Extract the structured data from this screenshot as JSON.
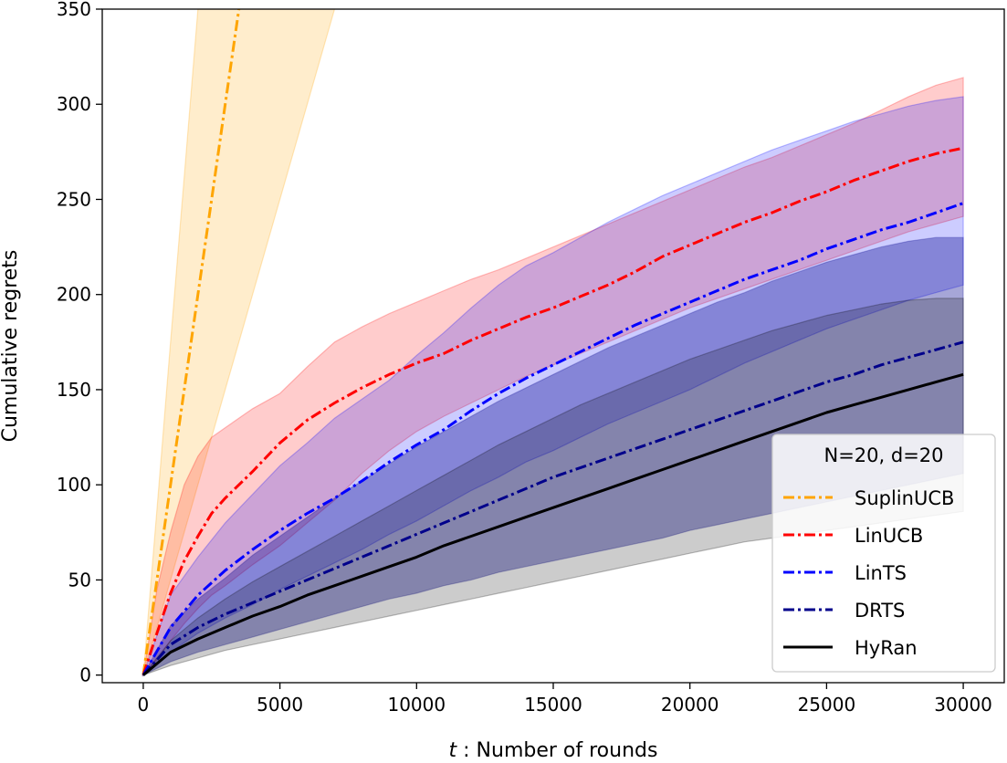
{
  "chart_data": {
    "type": "line",
    "xlabel_italic": "t",
    "xlabel_rest": " : Number of rounds",
    "ylabel": "Cumulative regrets",
    "xlim": [
      -1500,
      31500
    ],
    "ylim": [
      -4,
      350
    ],
    "xticks": [
      0,
      5000,
      10000,
      15000,
      20000,
      25000,
      30000
    ],
    "yticks": [
      0,
      50,
      100,
      150,
      200,
      250,
      300,
      350
    ],
    "legend_title": "N=20, d=20",
    "legend_position": "lower-right",
    "grid": false,
    "series": [
      {
        "name": "SuplinUCB",
        "color": "#ffa500",
        "dash": "dashdot",
        "fill_opacity": 0.2,
        "x": [
          0,
          500,
          1000,
          1500,
          2000,
          2500,
          3000,
          3500
        ],
        "y": [
          0,
          50,
          100,
          150,
          200,
          250,
          300,
          350
        ],
        "lower": [
          0,
          30,
          60,
          90,
          120,
          145,
          175,
          205
        ],
        "upper": [
          0,
          90,
          180,
          270,
          350,
          430,
          520,
          600
        ],
        "band_x": [
          0,
          500,
          1000,
          1500,
          2000,
          2500,
          3000,
          3500,
          10200
        ],
        "band_lower": [
          0,
          25,
          50,
          75,
          100,
          125,
          150,
          175,
          510
        ],
        "band_upper": [
          0,
          87,
          175,
          262,
          350,
          440,
          525,
          615,
          1790
        ]
      },
      {
        "name": "LinUCB",
        "color": "#ff0000",
        "dash": "dashdot",
        "fill_opacity": 0.2,
        "x": [
          0,
          500,
          1000,
          1500,
          2000,
          2500,
          3000,
          4000,
          5000,
          6000,
          7000,
          8000,
          9000,
          10000,
          11000,
          12000,
          13000,
          14000,
          15000,
          16000,
          17000,
          18000,
          19000,
          20000,
          21000,
          22000,
          23000,
          24000,
          25000,
          26000,
          27000,
          28000,
          29000,
          30000
        ],
        "y": [
          0,
          22,
          43,
          60,
          73,
          85,
          93,
          107,
          122,
          134,
          143,
          151,
          158,
          164,
          169,
          176,
          182,
          188,
          193,
          199,
          205,
          212,
          220,
          226,
          232,
          238,
          243,
          249,
          254,
          260,
          265,
          270,
          274,
          277
        ],
        "lower": [
          0,
          8,
          18,
          27,
          35,
          42,
          47,
          58,
          68,
          80,
          92,
          106,
          118,
          128,
          136,
          143,
          150,
          157,
          163,
          169,
          175,
          181,
          187,
          193,
          198,
          203,
          208,
          213,
          218,
          223,
          228,
          233,
          237,
          241
        ],
        "upper": [
          0,
          45,
          75,
          100,
          115,
          125,
          130,
          140,
          148,
          162,
          175,
          183,
          190,
          196,
          202,
          208,
          213,
          219,
          225,
          231,
          237,
          243,
          249,
          255,
          261,
          267,
          272,
          278,
          284,
          290,
          297,
          304,
          310,
          314
        ]
      },
      {
        "name": "LinTS",
        "color": "#0000ff",
        "dash": "dashdot",
        "fill_opacity": 0.2,
        "x": [
          0,
          1000,
          2000,
          3000,
          4000,
          5000,
          6000,
          7000,
          8000,
          9000,
          10000,
          11000,
          12000,
          13000,
          14000,
          15000,
          16000,
          17000,
          18000,
          19000,
          20000,
          21000,
          22000,
          23000,
          24000,
          25000,
          26000,
          27000,
          28000,
          29000,
          30000
        ],
        "y": [
          0,
          25,
          42,
          55,
          66,
          76,
          85,
          93,
          102,
          112,
          121,
          129,
          139,
          148,
          156,
          163,
          170,
          177,
          184,
          190,
          196,
          202,
          208,
          213,
          218,
          224,
          229,
          234,
          238,
          243,
          248
        ],
        "lower": [
          0,
          12,
          22,
          30,
          37,
          45,
          52,
          59,
          66,
          74,
          81,
          89,
          97,
          104,
          112,
          118,
          125,
          132,
          138,
          144,
          150,
          157,
          164,
          170,
          176,
          182,
          187,
          192,
          197,
          201,
          205
        ],
        "upper": [
          0,
          42,
          62,
          80,
          95,
          110,
          122,
          135,
          145,
          155,
          168,
          180,
          193,
          205,
          215,
          222,
          230,
          238,
          245,
          252,
          258,
          264,
          270,
          276,
          281,
          286,
          291,
          295,
          299,
          302,
          304
        ]
      },
      {
        "name": "DRTS",
        "color": "#00008b",
        "dash": "dashdot",
        "fill_opacity": 0.35,
        "x": [
          0,
          1000,
          2000,
          3000,
          4000,
          5000,
          6000,
          7000,
          8000,
          9000,
          10000,
          11000,
          12000,
          13000,
          14000,
          15000,
          16000,
          17000,
          18000,
          19000,
          20000,
          21000,
          22000,
          23000,
          24000,
          25000,
          26000,
          27000,
          28000,
          29000,
          30000
        ],
        "y": [
          0,
          16,
          25,
          32,
          38,
          44,
          50,
          56,
          62,
          68,
          74,
          80,
          86,
          92,
          98,
          104,
          109,
          114,
          119,
          124,
          129,
          134,
          139,
          144,
          149,
          154,
          158,
          163,
          167,
          171,
          175
        ],
        "lower": [
          0,
          7,
          12,
          16,
          20,
          24,
          28,
          32,
          36,
          40,
          43,
          47,
          50,
          54,
          57,
          60,
          63,
          66,
          69,
          72,
          76,
          79,
          82,
          85,
          88,
          91,
          94,
          97,
          100,
          103,
          106
        ],
        "upper": [
          0,
          26,
          40,
          51,
          63,
          73,
          83,
          93,
          102,
          111,
          120,
          128,
          136,
          144,
          151,
          158,
          165,
          172,
          178,
          184,
          190,
          196,
          201,
          207,
          212,
          217,
          221,
          225,
          228,
          230,
          230
        ]
      },
      {
        "name": "HyRan",
        "color": "#000000",
        "dash": "solid",
        "fill_opacity": 0.2,
        "x": [
          0,
          1000,
          2000,
          3000,
          4000,
          5000,
          6000,
          7000,
          8000,
          9000,
          10000,
          11000,
          12000,
          13000,
          14000,
          15000,
          16000,
          17000,
          18000,
          19000,
          20000,
          21000,
          22000,
          23000,
          24000,
          25000,
          26000,
          27000,
          28000,
          29000,
          30000
        ],
        "y": [
          0,
          12,
          19,
          25,
          31,
          36,
          42,
          47,
          52,
          57,
          62,
          68,
          73,
          78,
          83,
          88,
          93,
          98,
          103,
          108,
          113,
          118,
          123,
          128,
          133,
          138,
          142,
          146,
          150,
          154,
          158
        ],
        "lower": [
          0,
          5,
          9,
          13,
          16,
          19,
          22,
          25,
          28,
          31,
          34,
          37,
          40,
          43,
          46,
          49,
          52,
          55,
          58,
          61,
          64,
          67,
          70,
          72,
          74,
          76,
          78,
          80,
          82,
          84,
          86
        ],
        "upper": [
          0,
          18,
          30,
          40,
          49,
          57,
          65,
          73,
          81,
          89,
          97,
          105,
          113,
          121,
          128,
          135,
          142,
          148,
          154,
          160,
          166,
          171,
          176,
          181,
          185,
          189,
          192,
          195,
          197,
          198,
          198
        ]
      }
    ]
  }
}
